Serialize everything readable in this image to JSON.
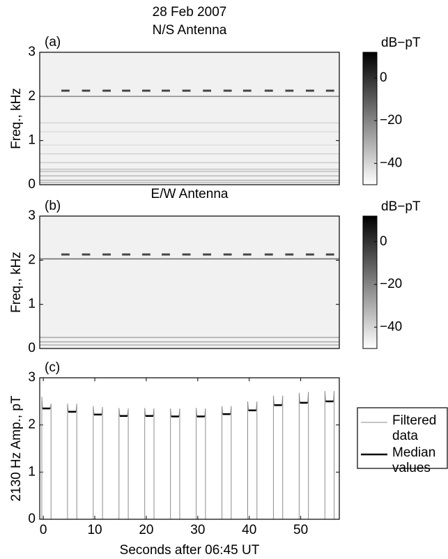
{
  "title": "28 Feb 2007",
  "chart_data": [
    {
      "type": "spectrogram",
      "title": "N/S Antenna",
      "label": "(a)",
      "ylabel": "Freq., kHz",
      "xlim": [
        -0.7,
        57.5
      ],
      "ylim": [
        0,
        3
      ],
      "yticks": [
        0,
        1,
        2,
        3
      ],
      "clim": [
        -50,
        12
      ],
      "cticks": [
        0,
        {
          "value": -20,
          "label": "−20"
        },
        {
          "value": -40,
          "label": "−40"
        }
      ],
      "colorbar_label": "dB−pT",
      "lines": {
        "freqs": [
          2.0,
          1.4,
          1.2,
          0.9,
          0.7,
          0.5,
          0.35,
          0.3,
          0.2,
          0.1,
          0.05
        ],
        "levels": [
          -22,
          -40,
          -42,
          -42,
          -40,
          -38,
          -36,
          -35,
          -33,
          -32,
          -34
        ]
      },
      "pulses": {
        "x": [
          3.5,
          7.5,
          11.5,
          15.3,
          19.2,
          23.0,
          27.0,
          31.0,
          35.0,
          38.8,
          43.0,
          47.0,
          51.0,
          54.9
        ],
        "width": 1.6,
        "freq": 2.13,
        "level": -5
      }
    },
    {
      "type": "spectrogram",
      "title": "E/W Antenna",
      "label": "(b)",
      "ylabel": "Freq., kHz",
      "xlim": [
        -0.7,
        57.5
      ],
      "ylim": [
        0,
        3
      ],
      "yticks": [
        0,
        1,
        2,
        3
      ],
      "clim": [
        -50,
        12
      ],
      "cticks": [
        0,
        {
          "value": -20,
          "label": "−20"
        },
        {
          "value": -40,
          "label": "−40"
        }
      ],
      "colorbar_label": "dB−pT",
      "lines": {
        "freqs": [
          2.03,
          0.25,
          0.15,
          0.08
        ],
        "levels": [
          -15,
          -30,
          -30,
          -32
        ]
      },
      "pulses": {
        "x": [
          3.5,
          7.5,
          11.5,
          15.3,
          19.2,
          23.0,
          27.0,
          31.0,
          35.0,
          38.8,
          43.0,
          47.0,
          51.0,
          54.9
        ],
        "width": 1.6,
        "freq": 2.13,
        "level": -5
      }
    },
    {
      "type": "line",
      "label": "(c)",
      "ylabel": "2130 Hz Amp., pT",
      "xlabel": "Seconds after 06:45 UT",
      "xlim": [
        -0.7,
        57.5
      ],
      "ylim": [
        0,
        3
      ],
      "xticks": [
        0,
        10,
        20,
        30,
        40,
        50
      ],
      "yticks": [
        0,
        1,
        2,
        3
      ],
      "series": [
        {
          "name": "Filtered data",
          "color": "#8c8c8c",
          "width": 1,
          "x": [
            -0.3,
            -0.3,
            -0.15,
            1.35,
            1.5,
            1.5,
            4.7,
            4.7,
            4.85,
            6.35,
            6.5,
            6.5,
            9.7,
            9.7,
            9.85,
            11.35,
            11.5,
            11.5,
            14.7,
            14.7,
            14.85,
            16.35,
            16.5,
            16.5,
            19.7,
            19.7,
            19.85,
            21.35,
            21.5,
            21.5,
            24.7,
            24.7,
            24.85,
            26.35,
            26.5,
            26.5,
            29.7,
            29.7,
            29.85,
            31.35,
            31.5,
            31.5,
            34.7,
            34.7,
            34.85,
            36.35,
            36.5,
            36.5,
            39.7,
            39.7,
            39.85,
            41.35,
            41.5,
            41.5,
            44.7,
            44.7,
            44.85,
            46.35,
            46.5,
            46.5,
            49.7,
            49.7,
            49.85,
            51.35,
            51.5,
            51.5,
            54.7,
            54.7,
            54.85,
            56.35,
            56.5,
            56.5,
            57.4
          ],
          "values": [
            0,
            2.6,
            2.35,
            2.35,
            2.45,
            0,
            0,
            2.45,
            2.28,
            2.28,
            2.45,
            0,
            0,
            2.4,
            2.22,
            2.22,
            2.38,
            0,
            0,
            2.36,
            2.19,
            2.19,
            2.35,
            0,
            0,
            2.36,
            2.19,
            2.19,
            2.35,
            0,
            0,
            2.35,
            2.18,
            2.18,
            2.35,
            0,
            0,
            2.36,
            2.18,
            2.18,
            2.35,
            0,
            0,
            2.4,
            2.23,
            2.23,
            2.4,
            0,
            0,
            2.5,
            2.31,
            2.31,
            2.5,
            0,
            0,
            2.62,
            2.42,
            2.42,
            2.62,
            0,
            0,
            2.68,
            2.47,
            2.47,
            2.7,
            0,
            0,
            2.72,
            2.5,
            2.5,
            2.72,
            0,
            0
          ]
        },
        {
          "name": "Median values",
          "color": "#000000",
          "width": 2.5,
          "x": [
            -0.15,
            1.35,
            1.35,
            4.85,
            6.35,
            6.35,
            9.85,
            11.35,
            11.35,
            14.85,
            16.35,
            16.35,
            19.85,
            21.35,
            21.35,
            24.85,
            26.35,
            26.35,
            29.85,
            31.35,
            31.35,
            34.85,
            36.35,
            36.35,
            39.85,
            41.35,
            41.35,
            44.85,
            46.35,
            46.35,
            49.85,
            51.35,
            51.35,
            54.85,
            56.35
          ],
          "values": [
            2.35,
            2.35,
            null,
            2.28,
            2.28,
            null,
            2.22,
            2.22,
            null,
            2.19,
            2.19,
            null,
            2.19,
            2.19,
            null,
            2.18,
            2.18,
            null,
            2.18,
            2.18,
            null,
            2.23,
            2.23,
            null,
            2.31,
            2.31,
            null,
            2.42,
            2.42,
            null,
            2.47,
            2.47,
            null,
            2.5,
            2.5
          ]
        }
      ]
    }
  ]
}
